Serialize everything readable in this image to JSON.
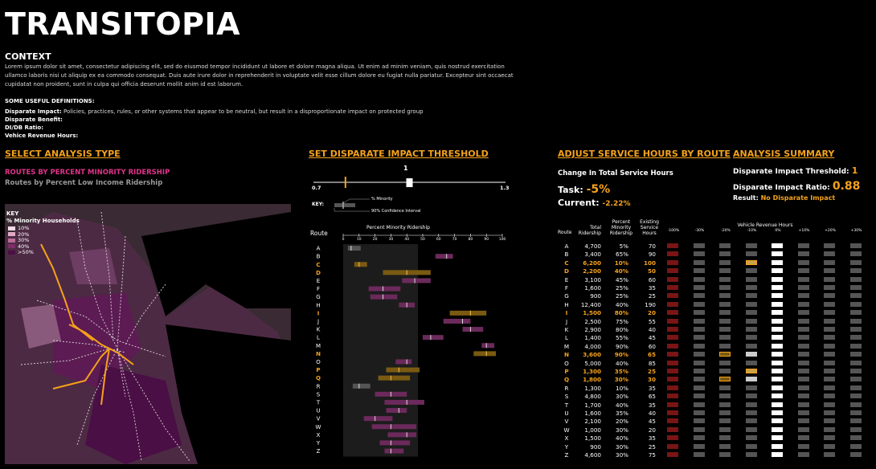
{
  "app": {
    "title": "TRANSITOPIA"
  },
  "context": {
    "heading": "CONTEXT",
    "paragraph": "Lorem ipsum dolor sit amet, consectetur adipiscing elit, sed do eiusmod tempor incididunt ut labore et dolore magna aliqua. Ut enim ad minim veniam, quis nostrud exercitation ullamco laboris nisi ut aliquip ex ea commodo consequat. Duis aute irure dolor in reprehenderit in voluptate velit esse cillum dolore eu fugiat nulla pariatur. Excepteur sint occaecat cupidatat non proident, sunt in culpa qui officia deserunt mollit anim id est laborum.",
    "defs_heading": "SOME USEFUL DEFINITIONS:",
    "defs": [
      {
        "term": "Disparate Impact:",
        "desc": "Policies, practices, rules, or other systems that appear to be neutral, but result in a disproportionate impact on protected group"
      },
      {
        "term": "Disparate Benefit:",
        "desc": ""
      },
      {
        "term": "DI/DB Ratio:",
        "desc": ""
      },
      {
        "term": "Vehice Revenue Hours:",
        "desc": ""
      }
    ]
  },
  "analysis": {
    "heading": "SELECT ANALYSIS TYPE",
    "option_active": "ROUTES BY PERCENT MINORITY RIDERSHIP",
    "option_inactive": "Routes by Percent Low Income Ridership"
  },
  "map": {
    "key_title": "KEY",
    "key_subtitle": "% Minority Households",
    "legend": [
      {
        "label": "10%",
        "color": "#f3d9e6"
      },
      {
        "label": "20%",
        "color": "#e0a8c4"
      },
      {
        "label": "30%",
        "color": "#b86b97"
      },
      {
        "label": "40%",
        "color": "#7d2e69"
      },
      {
        "label": ">50%",
        "color": "#4a0f44"
      }
    ]
  },
  "threshold": {
    "heading": "SET DISPARATE IMPACT THRESHOLD",
    "value_label": "1",
    "min_label": "0.7",
    "max_label": "1.3",
    "min": 0.7,
    "max": 1.3,
    "value": 1.0,
    "marker": 0.8,
    "key_label": "KEY:",
    "key_minority": "% Minority",
    "key_ci": "90% Confidence Interval",
    "chart_title": "Percent Minority Ridership",
    "route_header": "Route",
    "ticks": [
      "0",
      "10",
      "20",
      "30",
      "40",
      "50",
      "60",
      "70",
      "80",
      "90",
      "100"
    ]
  },
  "chart_data": {
    "type": "bar",
    "title": "Percent Minority Ridership",
    "xlim": [
      0,
      100
    ],
    "categories": [
      "A",
      "B",
      "C",
      "D",
      "E",
      "F",
      "G",
      "H",
      "I",
      "J",
      "K",
      "L",
      "M",
      "N",
      "O",
      "P",
      "Q",
      "R",
      "S",
      "T",
      "U",
      "V",
      "W",
      "X",
      "Y",
      "Z"
    ],
    "values": [
      5,
      65,
      10,
      40,
      45,
      25,
      25,
      40,
      80,
      75,
      80,
      55,
      90,
      90,
      40,
      35,
      30,
      10,
      30,
      40,
      35,
      20,
      30,
      40,
      30,
      30
    ],
    "ci_low": [
      3,
      58,
      7,
      25,
      37,
      16,
      17,
      35,
      67,
      63,
      75,
      50,
      87,
      82,
      33,
      27,
      22,
      6,
      20,
      26,
      27,
      13,
      18,
      28,
      23,
      26
    ],
    "ci_high": [
      11,
      69,
      15,
      55,
      55,
      36,
      34,
      45,
      90,
      80,
      88,
      63,
      95,
      96,
      43,
      48,
      42,
      17,
      40,
      51,
      40,
      31,
      46,
      46,
      42,
      38
    ],
    "highlighted": [
      "C",
      "D",
      "I",
      "N",
      "P",
      "Q"
    ]
  },
  "service": {
    "heading": "ADJUST SERVICE HOURS BY ROUTE",
    "change_label": "Change In Total Service Hours",
    "task_label": "Task:",
    "task_value": "-5%",
    "current_label": "Current:",
    "current_value": "-2.22%"
  },
  "summary": {
    "heading": "ANALYSIS SUMMARY",
    "threshold_label": "Disparate Impact Threshold:",
    "threshold_value": "1",
    "ratio_label": "Disparate Impact Ratio:",
    "ratio_value": "0.88",
    "result_label": "Result:",
    "result_value": "No Disparate Impact"
  },
  "table": {
    "headers": {
      "route": "Route",
      "ridership": "Total Ridership",
      "pct": "Percent Minority Ridership",
      "hours": "Existing Service Hours",
      "vrh": "Vehicle Revenue Hours"
    },
    "vrh_ticks": [
      "-100%",
      "-30%",
      "-20%",
      "-10%",
      "0%",
      "+10%",
      "+20%",
      "+30%"
    ],
    "rows": [
      {
        "r": "A",
        "t": "4,700",
        "p": "5%",
        "h": "70",
        "s": 4,
        "hi": false
      },
      {
        "r": "B",
        "t": "3,400",
        "p": "65%",
        "h": "90",
        "s": 4,
        "hi": false
      },
      {
        "r": "C",
        "t": "6,200",
        "p": "10%",
        "h": "100",
        "s": 3,
        "hi": true
      },
      {
        "r": "D",
        "t": "2,200",
        "p": "40%",
        "h": "50",
        "s": 4,
        "hi": true
      },
      {
        "r": "E",
        "t": "3,100",
        "p": "45%",
        "h": "60",
        "s": 4,
        "hi": false
      },
      {
        "r": "F",
        "t": "1,600",
        "p": "25%",
        "h": "35",
        "s": 4,
        "hi": false
      },
      {
        "r": "G",
        "t": "900",
        "p": "25%",
        "h": "25",
        "s": 4,
        "hi": false
      },
      {
        "r": "H",
        "t": "12,400",
        "p": "40%",
        "h": "190",
        "s": 4,
        "hi": false
      },
      {
        "r": "I",
        "t": "1,500",
        "p": "80%",
        "h": "20",
        "s": 4,
        "hi": true
      },
      {
        "r": "J",
        "t": "2,500",
        "p": "75%",
        "h": "55",
        "s": 4,
        "hi": false
      },
      {
        "r": "K",
        "t": "2,900",
        "p": "80%",
        "h": "40",
        "s": 4,
        "hi": false
      },
      {
        "r": "L",
        "t": "1,400",
        "p": "55%",
        "h": "45",
        "s": 4,
        "hi": false
      },
      {
        "r": "M",
        "t": "4,000",
        "p": "90%",
        "h": "60",
        "s": 4,
        "hi": false
      },
      {
        "r": "N",
        "t": "3,600",
        "p": "90%",
        "h": "65",
        "s": 2,
        "hi": true
      },
      {
        "r": "O",
        "t": "5,000",
        "p": "40%",
        "h": "85",
        "s": 4,
        "hi": false
      },
      {
        "r": "P",
        "t": "1,300",
        "p": "35%",
        "h": "25",
        "s": 3,
        "hi": true
      },
      {
        "r": "Q",
        "t": "1,800",
        "p": "30%",
        "h": "30",
        "s": 2,
        "hi": true
      },
      {
        "r": "R",
        "t": "1,300",
        "p": "10%",
        "h": "35",
        "s": 4,
        "hi": false
      },
      {
        "r": "S",
        "t": "4,800",
        "p": "30%",
        "h": "65",
        "s": 4,
        "hi": false
      },
      {
        "r": "T",
        "t": "1,700",
        "p": "40%",
        "h": "35",
        "s": 4,
        "hi": false
      },
      {
        "r": "U",
        "t": "1,600",
        "p": "35%",
        "h": "40",
        "s": 4,
        "hi": false
      },
      {
        "r": "V",
        "t": "2,100",
        "p": "20%",
        "h": "45",
        "s": 4,
        "hi": false
      },
      {
        "r": "W",
        "t": "1,000",
        "p": "30%",
        "h": "20",
        "s": 4,
        "hi": false
      },
      {
        "r": "X",
        "t": "1,500",
        "p": "40%",
        "h": "35",
        "s": 4,
        "hi": false
      },
      {
        "r": "Y",
        "t": "900",
        "p": "30%",
        "h": "25",
        "s": 4,
        "hi": false
      },
      {
        "r": "Z",
        "t": "4,600",
        "p": "30%",
        "h": "75",
        "s": 4,
        "hi": false
      }
    ]
  },
  "colors": {
    "accent": "#f5a21b",
    "pink": "#e0338a",
    "purple_ci": "#6b2a5b",
    "orange_ci": "#7a5a12",
    "red_col": "#8b1a1a"
  }
}
